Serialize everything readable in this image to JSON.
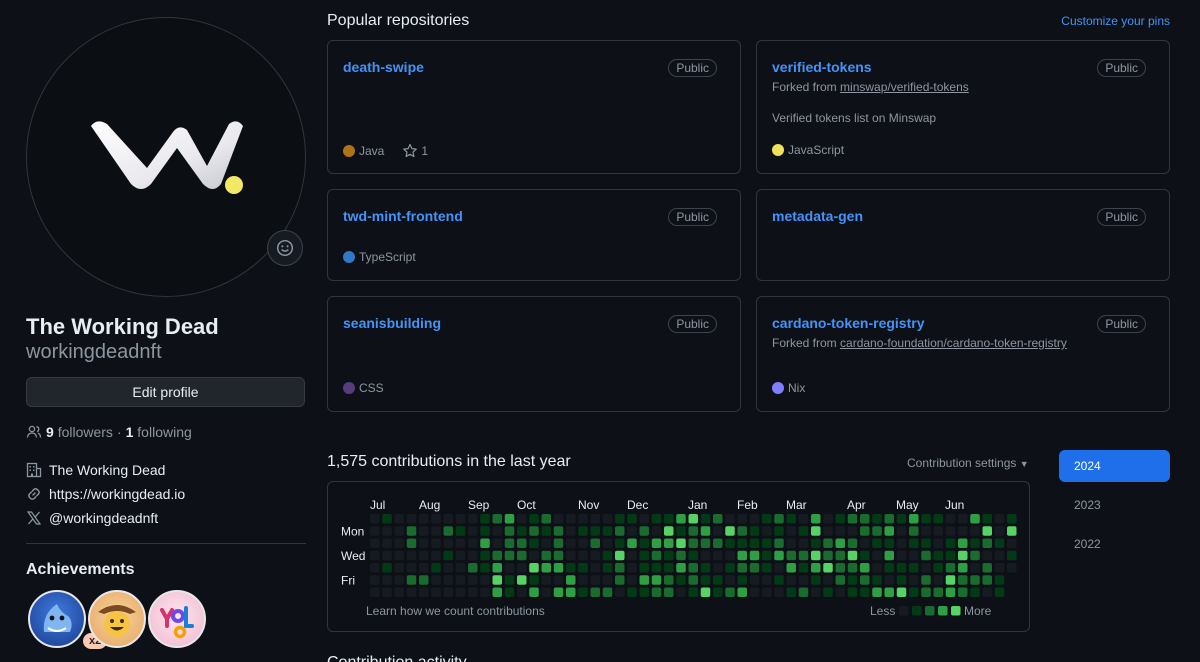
{
  "profile": {
    "name": "The Working Dead",
    "login": "workingdeadnft",
    "edit_label": "Edit profile",
    "followers_count": "9",
    "followers_label": "followers",
    "following_count": "1",
    "following_label": "following",
    "separator": "·",
    "org": "The Working Dead",
    "website": "https://workingdead.io",
    "twitter": "@workingdeadnft"
  },
  "achievements": {
    "title": "Achievements",
    "multiplier": "x2",
    "badges": [
      "shark-badge",
      "cowboy-badge",
      "yolo-badge"
    ]
  },
  "popular": {
    "title": "Popular repositories",
    "customize_label": "Customize your pins",
    "visibility": "Public",
    "repos": [
      {
        "name": "death-swipe",
        "language": "Java",
        "language_color": "#b07219",
        "stars": "1"
      },
      {
        "name": "verified-tokens",
        "forked_prefix": "Forked from",
        "forked_from": "minswap/verified-tokens",
        "description": "Verified tokens list on Minswap",
        "language": "JavaScript",
        "language_color": "#f1e05a"
      },
      {
        "name": "twd-mint-frontend",
        "language": "TypeScript",
        "language_color": "#3178c6"
      },
      {
        "name": "metadata-gen"
      },
      {
        "name": "seanisbuilding",
        "language": "CSS",
        "language_color": "#563d7c"
      },
      {
        "name": "cardano-token-registry",
        "forked_prefix": "Forked from",
        "forked_from": "cardano-foundation/cardano-token-registry",
        "language": "Nix",
        "language_color": "#7e7eff"
      }
    ]
  },
  "contributions": {
    "title": "1,575 contributions in the last year",
    "settings_label": "Contribution settings",
    "months": [
      "Jul",
      "Aug",
      "Sep",
      "Oct",
      "Nov",
      "Dec",
      "Jan",
      "Feb",
      "Mar",
      "Apr",
      "May",
      "Jun"
    ],
    "days": [
      "Mon",
      "Wed",
      "Fri"
    ],
    "learn_label": "Learn how we count contributions",
    "less_label": "Less",
    "more_label": "More",
    "level_colors": [
      "#161b22",
      "#033a16",
      "#196c2e",
      "#2ea043",
      "#56d364"
    ]
  },
  "years": [
    "2024",
    "2023",
    "2022"
  ],
  "activity_title": "Contribution activity",
  "colors": {
    "accent": "#4493f8",
    "active_year": "#1f6feb"
  }
}
